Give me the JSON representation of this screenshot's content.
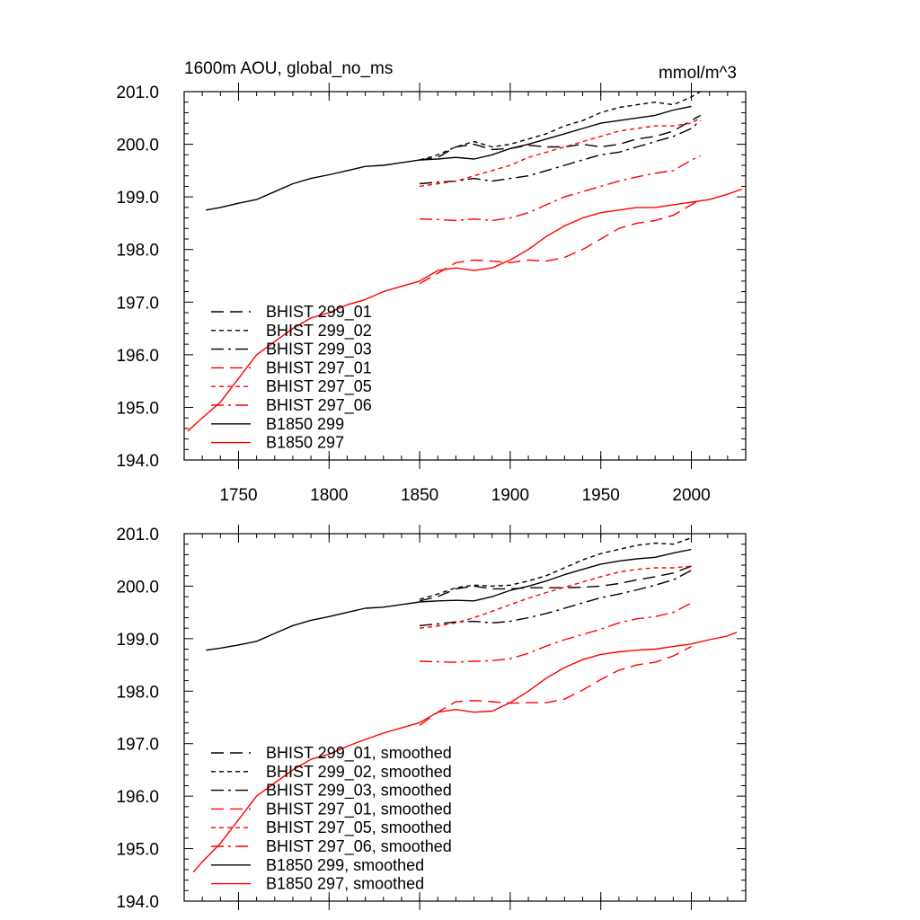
{
  "figure": {
    "title_left": "1600m AOU, global_no_ms",
    "title_right": "mmol/m^3"
  },
  "chart_data": [
    {
      "type": "line",
      "title": "1600m AOU, global_no_ms",
      "units": "mmol/m^3",
      "xlim": [
        1720,
        2030
      ],
      "ylim": [
        194.0,
        201.0
      ],
      "xticks": [
        1750,
        1800,
        1850,
        1900,
        1950,
        2000
      ],
      "xtick_labels": [
        "1750",
        "1800",
        "1850",
        "1900",
        "1950",
        "2000"
      ],
      "yticks": [
        194.0,
        195.0,
        196.0,
        197.0,
        198.0,
        199.0,
        200.0,
        201.0
      ],
      "ytick_labels": [
        "194.0",
        "195.0",
        "196.0",
        "197.0",
        "198.0",
        "199.0",
        "200.0",
        "201.0"
      ],
      "legend_position": "lower-left",
      "smoothed": false,
      "series": [
        {
          "name": "BHIST 299_01",
          "color": "#000000",
          "dash": "long-dash",
          "x": [
            1850,
            1860,
            1870,
            1880,
            1890,
            1900,
            1910,
            1920,
            1930,
            1940,
            1950,
            1960,
            1970,
            1980,
            1990,
            2000,
            2005
          ],
          "y": [
            199.7,
            199.75,
            199.95,
            200.0,
            199.9,
            199.92,
            199.98,
            199.95,
            199.95,
            200.0,
            199.95,
            200.0,
            200.1,
            200.15,
            200.25,
            200.45,
            200.55
          ]
        },
        {
          "name": "BHIST 299_02",
          "color": "#000000",
          "dash": "short-dash",
          "x": [
            1850,
            1860,
            1870,
            1880,
            1890,
            1900,
            1910,
            1920,
            1930,
            1940,
            1950,
            1960,
            1970,
            1980,
            1990,
            2000,
            2005
          ],
          "y": [
            199.7,
            199.8,
            199.95,
            200.05,
            199.95,
            200.0,
            200.1,
            200.2,
            200.35,
            200.45,
            200.6,
            200.7,
            200.75,
            200.8,
            200.75,
            200.9,
            201.0
          ]
        },
        {
          "name": "BHIST 299_03",
          "color": "#000000",
          "dash": "dash-dot",
          "x": [
            1850,
            1860,
            1870,
            1880,
            1890,
            1900,
            1910,
            1920,
            1930,
            1940,
            1950,
            1960,
            1970,
            1980,
            1990,
            2000,
            2005
          ],
          "y": [
            199.25,
            199.28,
            199.3,
            199.35,
            199.3,
            199.35,
            199.4,
            199.5,
            199.6,
            199.7,
            199.8,
            199.85,
            199.95,
            200.05,
            200.15,
            200.3,
            200.45
          ]
        },
        {
          "name": "BHIST 297_01",
          "color": "#ff0000",
          "dash": "long-dash",
          "x": [
            1850,
            1860,
            1870,
            1880,
            1890,
            1900,
            1910,
            1920,
            1930,
            1940,
            1950,
            1960,
            1970,
            1980,
            1990,
            2000,
            2005
          ],
          "y": [
            197.35,
            197.55,
            197.75,
            197.8,
            197.78,
            197.75,
            197.8,
            197.78,
            197.85,
            198.0,
            198.2,
            198.4,
            198.5,
            198.55,
            198.65,
            198.85,
            198.95
          ]
        },
        {
          "name": "BHIST 297_05",
          "color": "#ff0000",
          "dash": "short-dash",
          "x": [
            1850,
            1860,
            1870,
            1880,
            1890,
            1900,
            1910,
            1920,
            1930,
            1940,
            1950,
            1960,
            1970,
            1980,
            1990,
            2000,
            2005
          ],
          "y": [
            199.2,
            199.25,
            199.3,
            199.4,
            199.5,
            199.6,
            199.75,
            199.85,
            199.95,
            200.05,
            200.15,
            200.25,
            200.3,
            200.35,
            200.35,
            200.4,
            200.5
          ]
        },
        {
          "name": "BHIST 297_06",
          "color": "#ff0000",
          "dash": "dash-dot",
          "x": [
            1850,
            1860,
            1870,
            1880,
            1890,
            1900,
            1910,
            1920,
            1930,
            1940,
            1950,
            1960,
            1970,
            1980,
            1990,
            2000,
            2005
          ],
          "y": [
            198.58,
            198.57,
            198.55,
            198.58,
            198.55,
            198.6,
            198.7,
            198.85,
            199.0,
            199.1,
            199.2,
            199.3,
            199.38,
            199.45,
            199.5,
            199.7,
            199.78
          ]
        },
        {
          "name": "B1850 299",
          "color": "#000000",
          "dash": "solid",
          "x": [
            1732,
            1740,
            1750,
            1760,
            1770,
            1780,
            1790,
            1800,
            1810,
            1820,
            1830,
            1840,
            1850,
            1860,
            1870,
            1880,
            1890,
            1900,
            1910,
            1920,
            1930,
            1940,
            1950,
            1960,
            1970,
            1980,
            1990,
            2000
          ],
          "y": [
            198.75,
            198.8,
            198.88,
            198.95,
            199.1,
            199.25,
            199.35,
            199.42,
            199.5,
            199.58,
            199.6,
            199.65,
            199.7,
            199.72,
            199.75,
            199.72,
            199.8,
            199.92,
            200.0,
            200.1,
            200.2,
            200.3,
            200.4,
            200.45,
            200.5,
            200.55,
            200.65,
            200.72
          ]
        },
        {
          "name": "B1850 297",
          "color": "#ff0000",
          "dash": "solid",
          "x": [
            1722,
            1730,
            1740,
            1750,
            1760,
            1770,
            1780,
            1790,
            1800,
            1810,
            1820,
            1830,
            1840,
            1850,
            1860,
            1870,
            1880,
            1890,
            1900,
            1910,
            1920,
            1930,
            1940,
            1950,
            1960,
            1970,
            1980,
            1990,
            2000,
            2010,
            2020,
            2028
          ],
          "y": [
            194.55,
            194.8,
            195.1,
            195.55,
            196.0,
            196.25,
            196.5,
            196.7,
            196.8,
            196.95,
            197.05,
            197.2,
            197.3,
            197.4,
            197.6,
            197.65,
            197.6,
            197.65,
            197.8,
            198.0,
            198.25,
            198.45,
            198.6,
            198.7,
            198.75,
            198.8,
            198.8,
            198.85,
            198.9,
            198.95,
            199.05,
            199.15
          ]
        }
      ]
    },
    {
      "type": "line",
      "xlim": [
        1720,
        2030
      ],
      "ylim": [
        194.0,
        201.0
      ],
      "xticks": [
        1750,
        1800,
        1850,
        1900,
        1950,
        2000
      ],
      "yticks": [
        194.0,
        195.0,
        196.0,
        197.0,
        198.0,
        199.0,
        200.0,
        201.0
      ],
      "ytick_labels": [
        "194.0",
        "195.0",
        "196.0",
        "197.0",
        "198.0",
        "199.0",
        "200.0",
        "201.0"
      ],
      "legend_position": "lower-left",
      "smoothed": true,
      "series": [
        {
          "name": "BHIST 299_01, smoothed",
          "color": "#000000",
          "dash": "long-dash",
          "x": [
            1850,
            1860,
            1870,
            1880,
            1890,
            1900,
            1910,
            1920,
            1930,
            1940,
            1950,
            1960,
            1970,
            1980,
            1990,
            2000
          ],
          "y": [
            199.72,
            199.8,
            199.95,
            200.0,
            199.95,
            199.95,
            199.97,
            199.97,
            199.97,
            199.98,
            200.0,
            200.05,
            200.12,
            200.18,
            200.25,
            200.38
          ]
        },
        {
          "name": "BHIST 299_02, smoothed",
          "color": "#000000",
          "dash": "short-dash",
          "x": [
            1850,
            1860,
            1870,
            1880,
            1890,
            1900,
            1910,
            1920,
            1930,
            1940,
            1950,
            1960,
            1970,
            1980,
            1990,
            2000
          ],
          "y": [
            199.75,
            199.85,
            199.97,
            200.02,
            200.0,
            200.02,
            200.1,
            200.2,
            200.35,
            200.5,
            200.62,
            200.7,
            200.78,
            200.82,
            200.8,
            200.92
          ]
        },
        {
          "name": "BHIST 299_03, smoothed",
          "color": "#000000",
          "dash": "dash-dot",
          "x": [
            1850,
            1860,
            1870,
            1880,
            1890,
            1900,
            1910,
            1920,
            1930,
            1940,
            1950,
            1960,
            1970,
            1980,
            1990,
            2000
          ],
          "y": [
            199.25,
            199.28,
            199.32,
            199.33,
            199.3,
            199.33,
            199.4,
            199.48,
            199.58,
            199.68,
            199.78,
            199.85,
            199.93,
            200.02,
            200.12,
            200.3
          ]
        },
        {
          "name": "BHIST 297_01, smoothed",
          "color": "#ff0000",
          "dash": "long-dash",
          "x": [
            1850,
            1860,
            1870,
            1880,
            1890,
            1900,
            1910,
            1920,
            1930,
            1940,
            1950,
            1960,
            1970,
            1980,
            1990,
            2000
          ],
          "y": [
            197.35,
            197.6,
            197.8,
            197.82,
            197.8,
            197.77,
            197.78,
            197.78,
            197.85,
            198.02,
            198.22,
            198.4,
            198.5,
            198.55,
            198.67,
            198.85
          ]
        },
        {
          "name": "BHIST 297_05, smoothed",
          "color": "#ff0000",
          "dash": "short-dash",
          "x": [
            1850,
            1860,
            1870,
            1880,
            1890,
            1900,
            1910,
            1920,
            1930,
            1940,
            1950,
            1960,
            1970,
            1980,
            1990,
            2000
          ],
          "y": [
            199.2,
            199.24,
            199.3,
            199.4,
            199.52,
            199.65,
            199.77,
            199.88,
            199.98,
            200.08,
            200.18,
            200.27,
            200.32,
            200.35,
            200.35,
            200.38
          ]
        },
        {
          "name": "BHIST 297_06, smoothed",
          "color": "#ff0000",
          "dash": "dash-dot",
          "x": [
            1850,
            1860,
            1870,
            1880,
            1890,
            1900,
            1910,
            1920,
            1930,
            1940,
            1950,
            1960,
            1970,
            1980,
            1990,
            2000
          ],
          "y": [
            198.57,
            198.56,
            198.55,
            198.57,
            198.58,
            198.62,
            198.72,
            198.86,
            198.98,
            199.08,
            199.18,
            199.3,
            199.38,
            199.42,
            199.5,
            199.68
          ]
        },
        {
          "name": "B1850 299, smoothed",
          "color": "#000000",
          "dash": "solid",
          "x": [
            1732,
            1740,
            1750,
            1760,
            1770,
            1780,
            1790,
            1800,
            1810,
            1820,
            1830,
            1840,
            1850,
            1860,
            1870,
            1880,
            1890,
            1900,
            1910,
            1920,
            1930,
            1940,
            1950,
            1960,
            1970,
            1980,
            1990,
            2000
          ],
          "y": [
            198.78,
            198.82,
            198.88,
            198.95,
            199.1,
            199.25,
            199.35,
            199.42,
            199.5,
            199.58,
            199.6,
            199.65,
            199.7,
            199.72,
            199.73,
            199.72,
            199.8,
            199.92,
            200.0,
            200.1,
            200.22,
            200.32,
            200.42,
            200.48,
            200.52,
            200.55,
            200.63,
            200.7
          ]
        },
        {
          "name": "B1850 297, smoothed",
          "color": "#ff0000",
          "dash": "solid",
          "x": [
            1725,
            1730,
            1740,
            1750,
            1760,
            1770,
            1780,
            1790,
            1800,
            1810,
            1820,
            1830,
            1840,
            1850,
            1860,
            1870,
            1880,
            1890,
            1900,
            1910,
            1920,
            1930,
            1940,
            1950,
            1960,
            1970,
            1980,
            1990,
            2000,
            2010,
            2020,
            2025
          ],
          "y": [
            194.55,
            194.75,
            195.1,
            195.55,
            196.0,
            196.25,
            196.5,
            196.7,
            196.8,
            196.95,
            197.08,
            197.2,
            197.3,
            197.4,
            197.6,
            197.65,
            197.6,
            197.62,
            197.78,
            198.0,
            198.25,
            198.45,
            198.6,
            198.7,
            198.75,
            198.78,
            198.8,
            198.85,
            198.9,
            198.98,
            199.05,
            199.12
          ]
        }
      ]
    }
  ]
}
